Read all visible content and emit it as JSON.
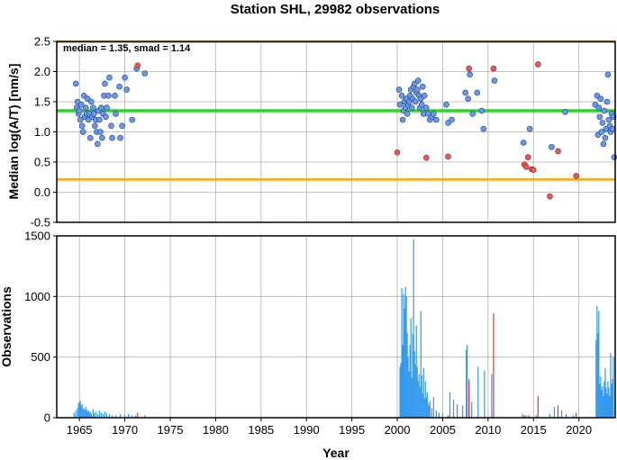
{
  "title": "Station SHL, 29982 observations",
  "annotation": "median = 1.35, smad = 1.14",
  "colors": {
    "median_line": "#22dd22",
    "bound_line": "#ffa500",
    "point_normal": "#6699ee",
    "point_outlier": "#ee5555",
    "bar_normal": "#3399ee",
    "bar_outlier": "#ee3333",
    "grid": "#b0b0b0"
  },
  "chart_data": [
    {
      "type": "scatter",
      "name": "upper",
      "title": "Station SHL, 29982 observations",
      "ylabel": "Median log(A/T) [nm/s]",
      "xlim": [
        1962.5,
        2024.0
      ],
      "ylim": [
        -0.5,
        2.5
      ],
      "yticks": [
        "-0.5",
        "0.0",
        "0.5",
        "1.0",
        "1.5",
        "2.0",
        "2.5"
      ],
      "grid": true,
      "median": 1.35,
      "upper_bound": 2.49,
      "lower_bound": 0.21,
      "points_normal": [
        [
          1964.6,
          1.8
        ],
        [
          1964.7,
          1.4
        ],
        [
          1964.8,
          1.5
        ],
        [
          1964.9,
          1.3
        ],
        [
          1965.0,
          1.35
        ],
        [
          1965.1,
          1.2
        ],
        [
          1965.2,
          1.45
        ],
        [
          1965.3,
          1.1
        ],
        [
          1965.4,
          1.0
        ],
        [
          1965.5,
          1.6
        ],
        [
          1965.6,
          1.25
        ],
        [
          1965.7,
          1.4
        ],
        [
          1965.8,
          1.3
        ],
        [
          1965.9,
          1.55
        ],
        [
          1966.0,
          1.2
        ],
        [
          1966.1,
          1.3
        ],
        [
          1966.2,
          0.9
        ],
        [
          1966.3,
          1.5
        ],
        [
          1966.4,
          1.25
        ],
        [
          1966.5,
          1.4
        ],
        [
          1966.6,
          1.3
        ],
        [
          1966.7,
          1.1
        ],
        [
          1966.8,
          1.2
        ],
        [
          1966.9,
          1.0
        ],
        [
          1967.0,
          0.8
        ],
        [
          1967.1,
          1.35
        ],
        [
          1967.2,
          1.2
        ],
        [
          1967.3,
          1.0
        ],
        [
          1967.4,
          1.4
        ],
        [
          1967.5,
          0.9
        ],
        [
          1967.6,
          1.3
        ],
        [
          1967.7,
          1.6
        ],
        [
          1967.8,
          1.8
        ],
        [
          1967.9,
          1.25
        ],
        [
          1968.0,
          1.4
        ],
        [
          1968.2,
          1.6
        ],
        [
          1968.3,
          1.9
        ],
        [
          1968.5,
          1.1
        ],
        [
          1968.6,
          0.9
        ],
        [
          1968.9,
          1.6
        ],
        [
          1969.0,
          1.3
        ],
        [
          1969.4,
          1.75
        ],
        [
          1969.5,
          0.9
        ],
        [
          1969.7,
          1.1
        ],
        [
          1970.0,
          1.9
        ],
        [
          1970.2,
          1.7
        ],
        [
          1970.8,
          1.2
        ],
        [
          1971.3,
          2.05
        ],
        [
          1972.2,
          1.97
        ],
        [
          2000.2,
          1.7
        ],
        [
          2000.3,
          1.45
        ],
        [
          2000.5,
          1.6
        ],
        [
          2000.6,
          1.2
        ],
        [
          2000.7,
          1.35
        ],
        [
          2000.8,
          1.5
        ],
        [
          2000.9,
          1.4
        ],
        [
          2001.0,
          1.55
        ],
        [
          2001.1,
          1.3
        ],
        [
          2001.2,
          1.45
        ],
        [
          2001.3,
          1.5
        ],
        [
          2001.4,
          1.6
        ],
        [
          2001.5,
          1.7
        ],
        [
          2001.6,
          1.4
        ],
        [
          2001.7,
          1.55
        ],
        [
          2001.8,
          1.75
        ],
        [
          2001.9,
          1.8
        ],
        [
          2002.0,
          1.5
        ],
        [
          2002.1,
          1.65
        ],
        [
          2002.2,
          1.7
        ],
        [
          2002.3,
          1.85
        ],
        [
          2002.4,
          1.6
        ],
        [
          2002.5,
          1.4
        ],
        [
          2002.6,
          1.55
        ],
        [
          2002.7,
          1.45
        ],
        [
          2002.8,
          1.75
        ],
        [
          2002.9,
          1.3
        ],
        [
          2003.0,
          1.6
        ],
        [
          2003.2,
          1.4
        ],
        [
          2003.4,
          1.3
        ],
        [
          2003.6,
          1.2
        ],
        [
          2003.8,
          1.25
        ],
        [
          2004.0,
          1.3
        ],
        [
          2004.3,
          1.2
        ],
        [
          2005.4,
          1.45
        ],
        [
          2005.6,
          1.15
        ],
        [
          2006.0,
          1.2
        ],
        [
          2007.5,
          1.65
        ],
        [
          2007.8,
          1.55
        ],
        [
          2008.0,
          1.95
        ],
        [
          2008.3,
          1.3
        ],
        [
          2008.8,
          1.65
        ],
        [
          2009.3,
          1.35
        ],
        [
          2009.5,
          1.05
        ],
        [
          2010.7,
          1.85
        ],
        [
          2013.9,
          0.82
        ],
        [
          2014.6,
          1.05
        ],
        [
          2017.0,
          0.75
        ],
        [
          2018.5,
          1.33
        ],
        [
          2021.8,
          1.45
        ],
        [
          2022.0,
          1.6
        ],
        [
          2022.1,
          0.95
        ],
        [
          2022.2,
          1.4
        ],
        [
          2022.3,
          1.25
        ],
        [
          2022.4,
          1.55
        ],
        [
          2022.5,
          1.0
        ],
        [
          2022.6,
          1.15
        ],
        [
          2022.7,
          0.8
        ],
        [
          2022.8,
          1.35
        ],
        [
          2022.9,
          0.9
        ],
        [
          2023.0,
          1.05
        ],
        [
          2023.1,
          1.5
        ],
        [
          2023.2,
          1.95
        ],
        [
          2023.3,
          1.2
        ],
        [
          2023.4,
          1.1
        ],
        [
          2023.5,
          1.0
        ],
        [
          2023.6,
          1.3
        ],
        [
          2023.7,
          1.05
        ],
        [
          2023.8,
          1.25
        ],
        [
          2023.9,
          0.58
        ]
      ],
      "points_outlier": [
        [
          1971.4,
          2.1
        ],
        [
          2000.0,
          0.66
        ],
        [
          2003.2,
          0.57
        ],
        [
          2005.6,
          0.59
        ],
        [
          2007.9,
          2.05
        ],
        [
          2010.6,
          2.05
        ],
        [
          2014.0,
          0.46
        ],
        [
          2014.2,
          0.42
        ],
        [
          2014.4,
          0.58
        ],
        [
          2014.8,
          0.38
        ],
        [
          2015.0,
          0.37
        ],
        [
          2015.5,
          2.12
        ],
        [
          2016.8,
          -0.07
        ],
        [
          2017.7,
          0.68
        ],
        [
          2019.7,
          0.27
        ]
      ]
    },
    {
      "type": "bar",
      "name": "lower",
      "xlabel": "Year",
      "ylabel": "Observations",
      "xlim": [
        1962.5,
        2024.0
      ],
      "ylim": [
        0,
        1500
      ],
      "yticks": [
        "0",
        "500",
        "1000",
        "1500"
      ],
      "xticks": [
        "1965",
        "1970",
        "1975",
        "1980",
        "1985",
        "1990",
        "1995",
        "2000",
        "2005",
        "2010",
        "2015",
        "2020"
      ],
      "grid": true,
      "bars_normal": [
        [
          1964.4,
          40
        ],
        [
          1964.6,
          60
        ],
        [
          1964.8,
          80
        ],
        [
          1964.9,
          120
        ],
        [
          1965.0,
          130
        ],
        [
          1965.1,
          140
        ],
        [
          1965.2,
          100
        ],
        [
          1965.3,
          110
        ],
        [
          1965.4,
          70
        ],
        [
          1965.5,
          80
        ],
        [
          1965.6,
          60
        ],
        [
          1965.7,
          90
        ],
        [
          1965.8,
          70
        ],
        [
          1965.9,
          50
        ],
        [
          1966.0,
          60
        ],
        [
          1966.1,
          40
        ],
        [
          1966.2,
          50
        ],
        [
          1966.3,
          30
        ],
        [
          1966.5,
          70
        ],
        [
          1966.6,
          40
        ],
        [
          1966.8,
          50
        ],
        [
          1967.0,
          30
        ],
        [
          1967.2,
          60
        ],
        [
          1967.4,
          40
        ],
        [
          1967.6,
          30
        ],
        [
          1967.8,
          50
        ],
        [
          1968.0,
          40
        ],
        [
          1968.3,
          30
        ],
        [
          1968.6,
          20
        ],
        [
          1969.0,
          20
        ],
        [
          1969.5,
          30
        ],
        [
          1970.0,
          20
        ],
        [
          1970.4,
          30
        ],
        [
          1970.8,
          20
        ],
        [
          1971.2,
          20
        ],
        [
          1972.2,
          20
        ],
        [
          2000.3,
          420
        ],
        [
          2000.4,
          450
        ],
        [
          2000.5,
          1070
        ],
        [
          2000.6,
          600
        ],
        [
          2000.7,
          1020
        ],
        [
          2000.8,
          900
        ],
        [
          2000.9,
          1080
        ],
        [
          2001.0,
          1000
        ],
        [
          2001.1,
          700
        ],
        [
          2001.2,
          500
        ],
        [
          2001.3,
          380
        ],
        [
          2001.4,
          600
        ],
        [
          2001.5,
          820
        ],
        [
          2001.6,
          330
        ],
        [
          2001.7,
          690
        ],
        [
          2001.8,
          1470
        ],
        [
          2001.9,
          550
        ],
        [
          2002.0,
          440
        ],
        [
          2002.1,
          760
        ],
        [
          2002.2,
          420
        ],
        [
          2002.3,
          300
        ],
        [
          2002.4,
          360
        ],
        [
          2002.5,
          250
        ],
        [
          2002.6,
          880
        ],
        [
          2002.7,
          350
        ],
        [
          2002.8,
          200
        ],
        [
          2002.9,
          410
        ],
        [
          2003.0,
          160
        ],
        [
          2003.1,
          300
        ],
        [
          2003.2,
          170
        ],
        [
          2003.3,
          210
        ],
        [
          2003.4,
          120
        ],
        [
          2003.5,
          100
        ],
        [
          2003.6,
          140
        ],
        [
          2003.8,
          80
        ],
        [
          2004.0,
          170
        ],
        [
          2004.3,
          60
        ],
        [
          2004.6,
          40
        ],
        [
          2005.0,
          40
        ],
        [
          2005.8,
          210
        ],
        [
          2006.2,
          150
        ],
        [
          2006.6,
          110
        ],
        [
          2007.2,
          100
        ],
        [
          2007.6,
          560
        ],
        [
          2007.7,
          600
        ],
        [
          2007.9,
          320
        ],
        [
          2008.2,
          130
        ],
        [
          2008.9,
          420
        ],
        [
          2009.6,
          390
        ],
        [
          2010.4,
          360
        ],
        [
          2013.8,
          30
        ],
        [
          2014.2,
          20
        ],
        [
          2015.3,
          20
        ],
        [
          2016.8,
          30
        ],
        [
          2017.3,
          90
        ],
        [
          2018.1,
          60
        ],
        [
          2018.6,
          30
        ],
        [
          2019.4,
          20
        ],
        [
          2021.9,
          640
        ],
        [
          2022.0,
          920
        ],
        [
          2022.1,
          700
        ],
        [
          2022.2,
          880
        ],
        [
          2022.3,
          280
        ],
        [
          2022.4,
          340
        ],
        [
          2022.5,
          230
        ],
        [
          2022.6,
          260
        ],
        [
          2022.7,
          180
        ],
        [
          2022.8,
          300
        ],
        [
          2022.9,
          410
        ],
        [
          2023.0,
          250
        ],
        [
          2023.1,
          200
        ],
        [
          2023.2,
          300
        ],
        [
          2023.3,
          250
        ],
        [
          2023.4,
          180
        ],
        [
          2023.5,
          530
        ],
        [
          2023.6,
          280
        ],
        [
          2023.7,
          320
        ],
        [
          2023.8,
          500
        ]
      ],
      "bars_outlier": [
        [
          1971.4,
          40
        ],
        [
          2005.6,
          20
        ],
        [
          2007.9,
          300
        ],
        [
          2010.6,
          860
        ],
        [
          2014.0,
          20
        ],
        [
          2014.5,
          20
        ],
        [
          2015.5,
          180
        ],
        [
          2017.7,
          100
        ],
        [
          2019.7,
          40
        ]
      ]
    }
  ]
}
